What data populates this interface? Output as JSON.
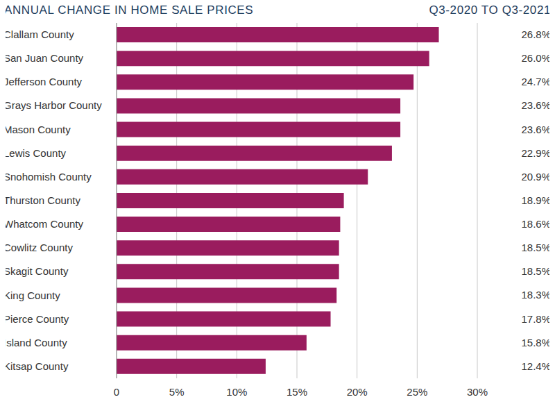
{
  "chart_data": {
    "type": "bar",
    "orientation": "horizontal",
    "title": "ANNUAL CHANGE IN HOME SALE PRICES",
    "subtitle": "Q3-2020 TO Q3-2021",
    "categories": [
      "Clallam County",
      "San Juan County",
      "Jefferson County",
      "Grays Harbor County",
      "Mason County",
      "Lewis County",
      "Snohomish County",
      "Thurston County",
      "Whatcom County",
      "Cowlitz County",
      "Skagit County",
      "King County",
      "Pierce County",
      "Island County",
      "Kitsap County"
    ],
    "values": [
      26.8,
      26.0,
      24.7,
      23.6,
      23.6,
      22.9,
      20.9,
      18.9,
      18.6,
      18.5,
      18.5,
      18.3,
      17.8,
      15.8,
      12.4
    ],
    "value_labels": [
      "26.8%",
      "26.0%",
      "24.7%",
      "23.6%",
      "23.6%",
      "22.9%",
      "20.9%",
      "18.9%",
      "18.6%",
      "18.5%",
      "18.5%",
      "18.3%",
      "17.8%",
      "15.8%",
      "12.4%"
    ],
    "data_labels": true,
    "color": "#9a1c5e",
    "xlim": [
      0,
      30
    ],
    "xticks": [
      0,
      {
        "value": 5,
        "label": "5%"
      },
      {
        "value": 10,
        "label": "10%"
      },
      {
        "value": 15,
        "label": "15%"
      },
      {
        "value": 20,
        "label": "20%"
      },
      {
        "value": 25,
        "label": "25%"
      },
      {
        "value": 30,
        "label": "30%"
      }
    ],
    "grid": true
  }
}
